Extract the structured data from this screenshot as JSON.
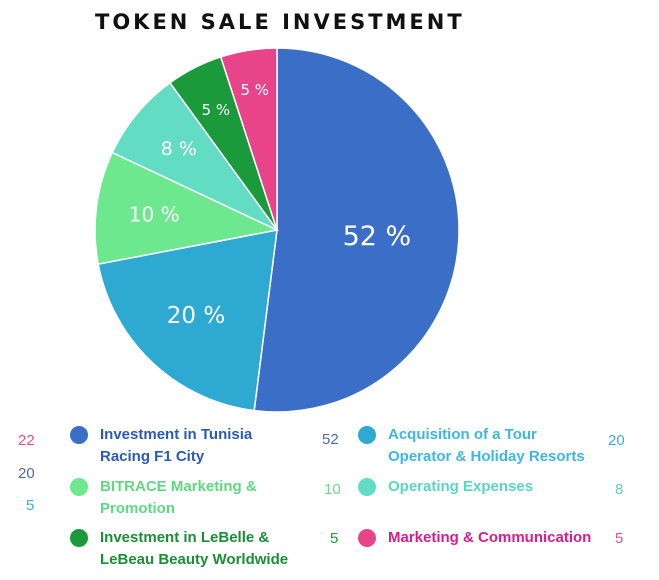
{
  "chart_data": {
    "type": "pie",
    "title": "TOKEN SALE INVESTMENT",
    "slices": [
      {
        "name": "Investment in Tunisia Racing F1 City",
        "value": 52,
        "label": "52 %",
        "color": "#3b6ec7"
      },
      {
        "name": "Acquisition of a Tour Operator & Holiday Resorts",
        "value": 20,
        "label": "20 %",
        "color": "#2eaad2"
      },
      {
        "name": "BITRACE Marketing & Promotion",
        "value": 10,
        "label": "10 %",
        "color": "#6ee88f"
      },
      {
        "name": "Operating Expenses",
        "value": 8,
        "label": "8 %",
        "color": "#62dcc3"
      },
      {
        "name": "Investment in LeBelle & LeBeau Beauty Worldwide",
        "value": 5,
        "label": "5 %",
        "color": "#1a9a3a"
      },
      {
        "name": "Marketing & Communication",
        "value": 5,
        "label": "5 %",
        "color": "#e8448a"
      }
    ],
    "legend": [
      {
        "lines": [
          "Investment in Tunisia",
          "Racing F1 City"
        ],
        "color": "#3b6ec7",
        "text_color": "#2a5bb8"
      },
      {
        "lines": [
          "Acquisition of a Tour",
          "Operator & Holiday Resorts"
        ],
        "color": "#2eaad2",
        "text_color": "#3db8dd"
      },
      {
        "lines": [
          "BITRACE Marketing &",
          "Promotion"
        ],
        "color": "#6ee88f",
        "text_color": "#5fd882"
      },
      {
        "lines": [
          "Operating Expenses"
        ],
        "color": "#62dcc3",
        "text_color": "#59d6bd"
      },
      {
        "lines": [
          "Investment in LeBelle &",
          "LeBeau Beauty Worldwide"
        ],
        "color": "#1a9a3a",
        "text_color": "#1a8f36"
      },
      {
        "lines": [
          "Marketing & Communication"
        ],
        "color": "#e8448a",
        "text_color": "#d91b8c"
      }
    ],
    "side_numbers": [
      {
        "text": "22",
        "color": "#d9568e"
      },
      {
        "text": "20",
        "color": "#4a6da8"
      },
      {
        "text": "5",
        "color": "#3ab0d8"
      },
      {
        "text": "52",
        "color": "#4a6da8"
      },
      {
        "text": "10",
        "color": "#6dd88c"
      },
      {
        "text": "5",
        "color": "#1f9a3c"
      },
      {
        "text": "20",
        "color": "#3ab0d8"
      },
      {
        "text": "8",
        "color": "#5fd0ba"
      },
      {
        "text": "5",
        "color": "#d9568e"
      }
    ]
  }
}
